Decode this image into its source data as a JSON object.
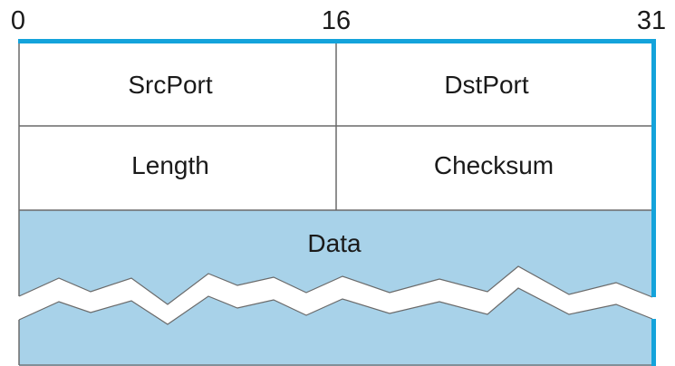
{
  "bit_markers": [
    "0",
    "16",
    "31"
  ],
  "fields": {
    "src_port": "SrcPort",
    "dst_port": "DstPort",
    "length": "Length",
    "checksum": "Checksum",
    "data": "Data"
  },
  "colors": {
    "accent_blue": "#14A3DB",
    "data_fill": "#A8D2E9",
    "line": "#6A6A6A",
    "background": "#FFFFFF"
  }
}
